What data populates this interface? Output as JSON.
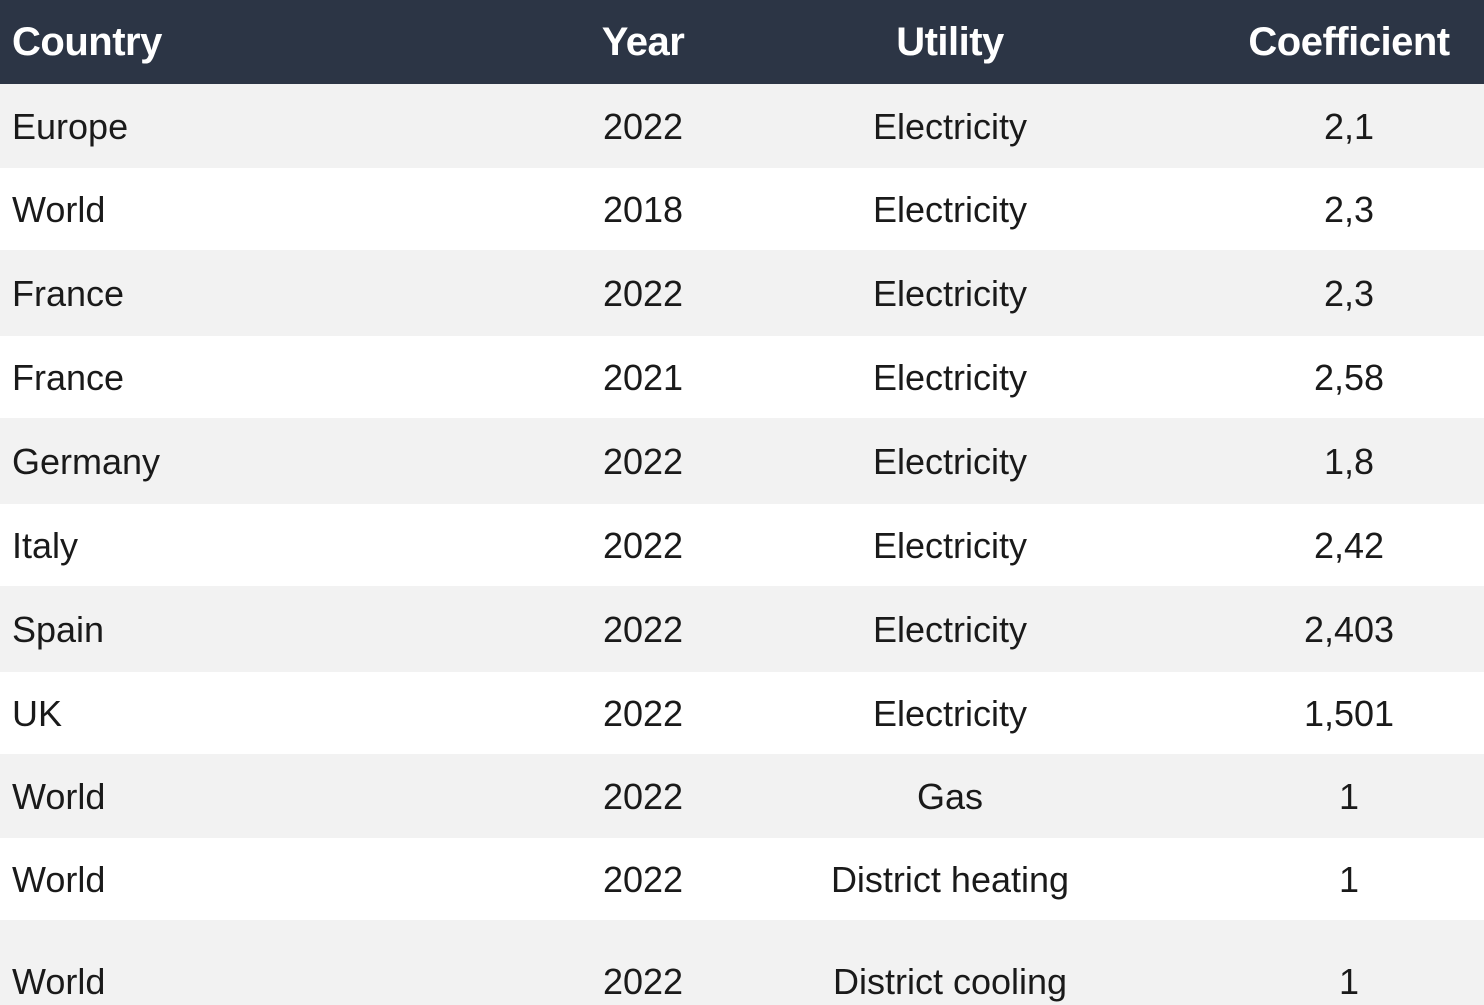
{
  "table": {
    "headers": {
      "country": "Country",
      "year": "Year",
      "utility": "Utility",
      "coefficient": "Coefficient"
    },
    "rows": [
      {
        "country": "Europe",
        "year": "2022",
        "utility": "Electricity",
        "coefficient": "2,1"
      },
      {
        "country": "World",
        "year": "2018",
        "utility": "Electricity",
        "coefficient": "2,3"
      },
      {
        "country": "France",
        "year": "2022",
        "utility": "Electricity",
        "coefficient": "2,3"
      },
      {
        "country": "France",
        "year": "2021",
        "utility": "Electricity",
        "coefficient": "2,58"
      },
      {
        "country": "Germany",
        "year": "2022",
        "utility": "Electricity",
        "coefficient": "1,8"
      },
      {
        "country": "Italy",
        "year": "2022",
        "utility": "Electricity",
        "coefficient": "2,42"
      },
      {
        "country": "Spain",
        "year": "2022",
        "utility": "Electricity",
        "coefficient": "2,403"
      },
      {
        "country": "UK",
        "year": "2022",
        "utility": "Electricity",
        "coefficient": "1,501"
      },
      {
        "country": "World",
        "year": "2022",
        "utility": "Gas",
        "coefficient": "1"
      },
      {
        "country": "World",
        "year": "2022",
        "utility": "District heating",
        "coefficient": "1"
      },
      {
        "country": "World",
        "year": "2022",
        "utility": "District cooling",
        "coefficient": "1"
      }
    ]
  },
  "colors": {
    "header_background": "#2c3545",
    "header_text": "#ffffff",
    "row_shaded": "#f2f2f2",
    "row_plain": "#ffffff",
    "text": "#1a1a1a"
  }
}
